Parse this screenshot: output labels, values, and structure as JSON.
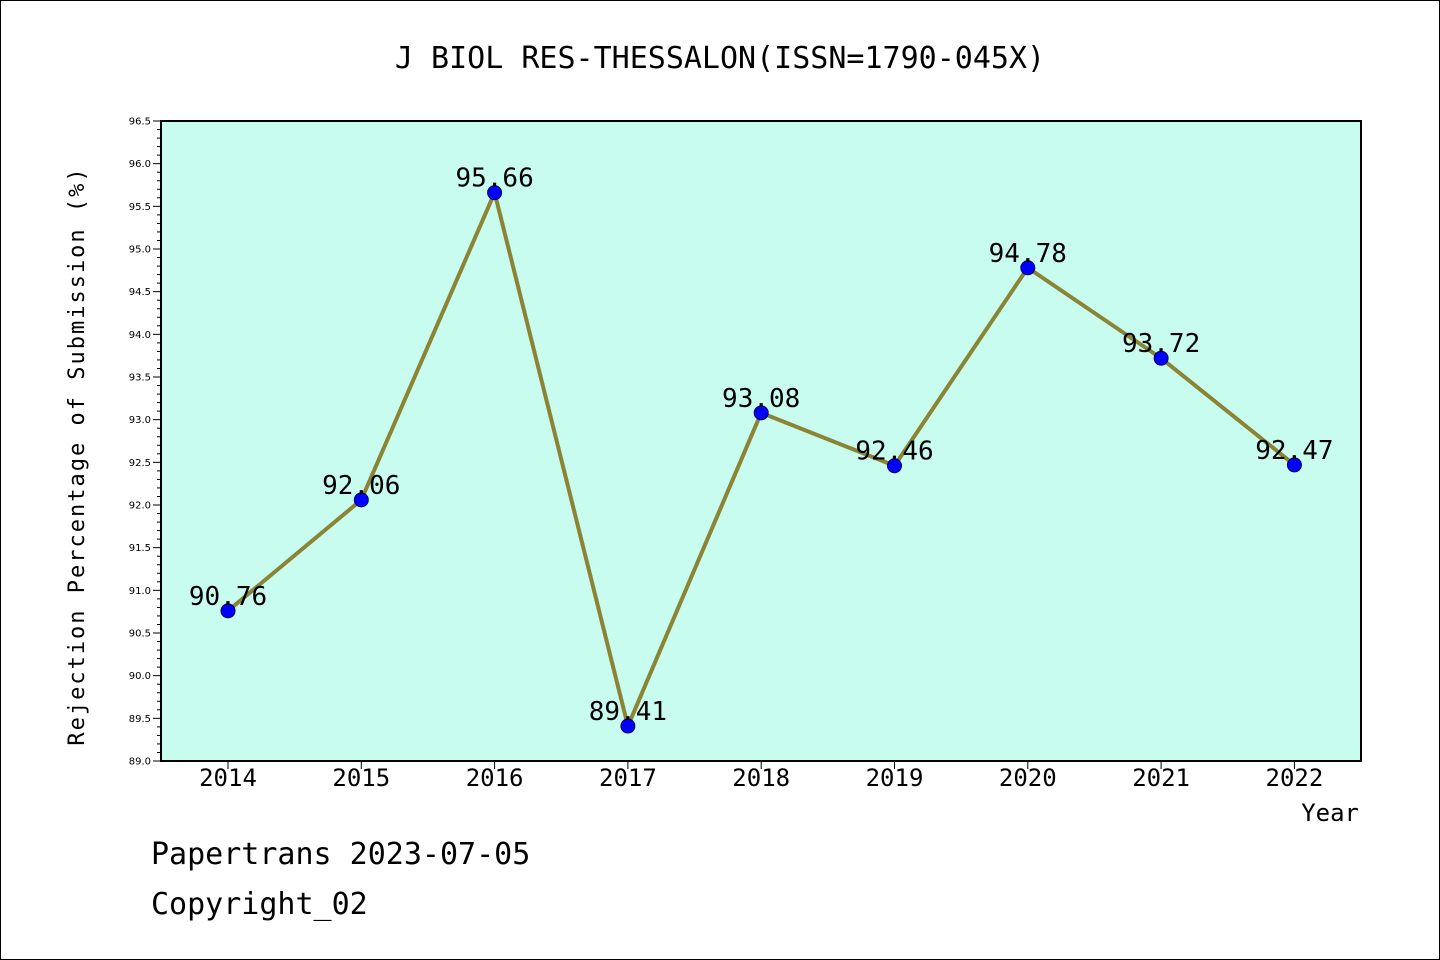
{
  "chart_data": {
    "type": "line",
    "title": "J BIOL RES-THESSALON(ISSN=1790-045X)",
    "xlabel": "Year",
    "ylabel": "Rejection Percentage of Submission (%)",
    "categories": [
      "2014",
      "2015",
      "2016",
      "2017",
      "2018",
      "2019",
      "2020",
      "2021",
      "2022"
    ],
    "series": [
      {
        "values": [
          90.76,
          92.06,
          95.66,
          89.41,
          93.08,
          92.46,
          94.78,
          93.72,
          92.47
        ]
      }
    ],
    "data_labels": [
      "90.76",
      "92.06",
      "95.66",
      "89.41",
      "93.08",
      "92.46",
      "94.78",
      "93.72",
      "92.47"
    ],
    "ylim": [
      89.0,
      96.5
    ],
    "yticks": [
      "89.0",
      "89.5",
      "90.0",
      "90.5",
      "91.0",
      "91.5",
      "92.0",
      "92.5",
      "93.0",
      "93.5",
      "94.0",
      "94.5",
      "95.0",
      "95.5",
      "96.0",
      "96.5"
    ],
    "grid": false,
    "colors": {
      "plot_background": "#c8fcee",
      "line": "#8b8434",
      "marker": "#0000ff"
    }
  },
  "footer": {
    "line1": "Papertrans 2023-07-05",
    "line2": "Copyright_02"
  }
}
